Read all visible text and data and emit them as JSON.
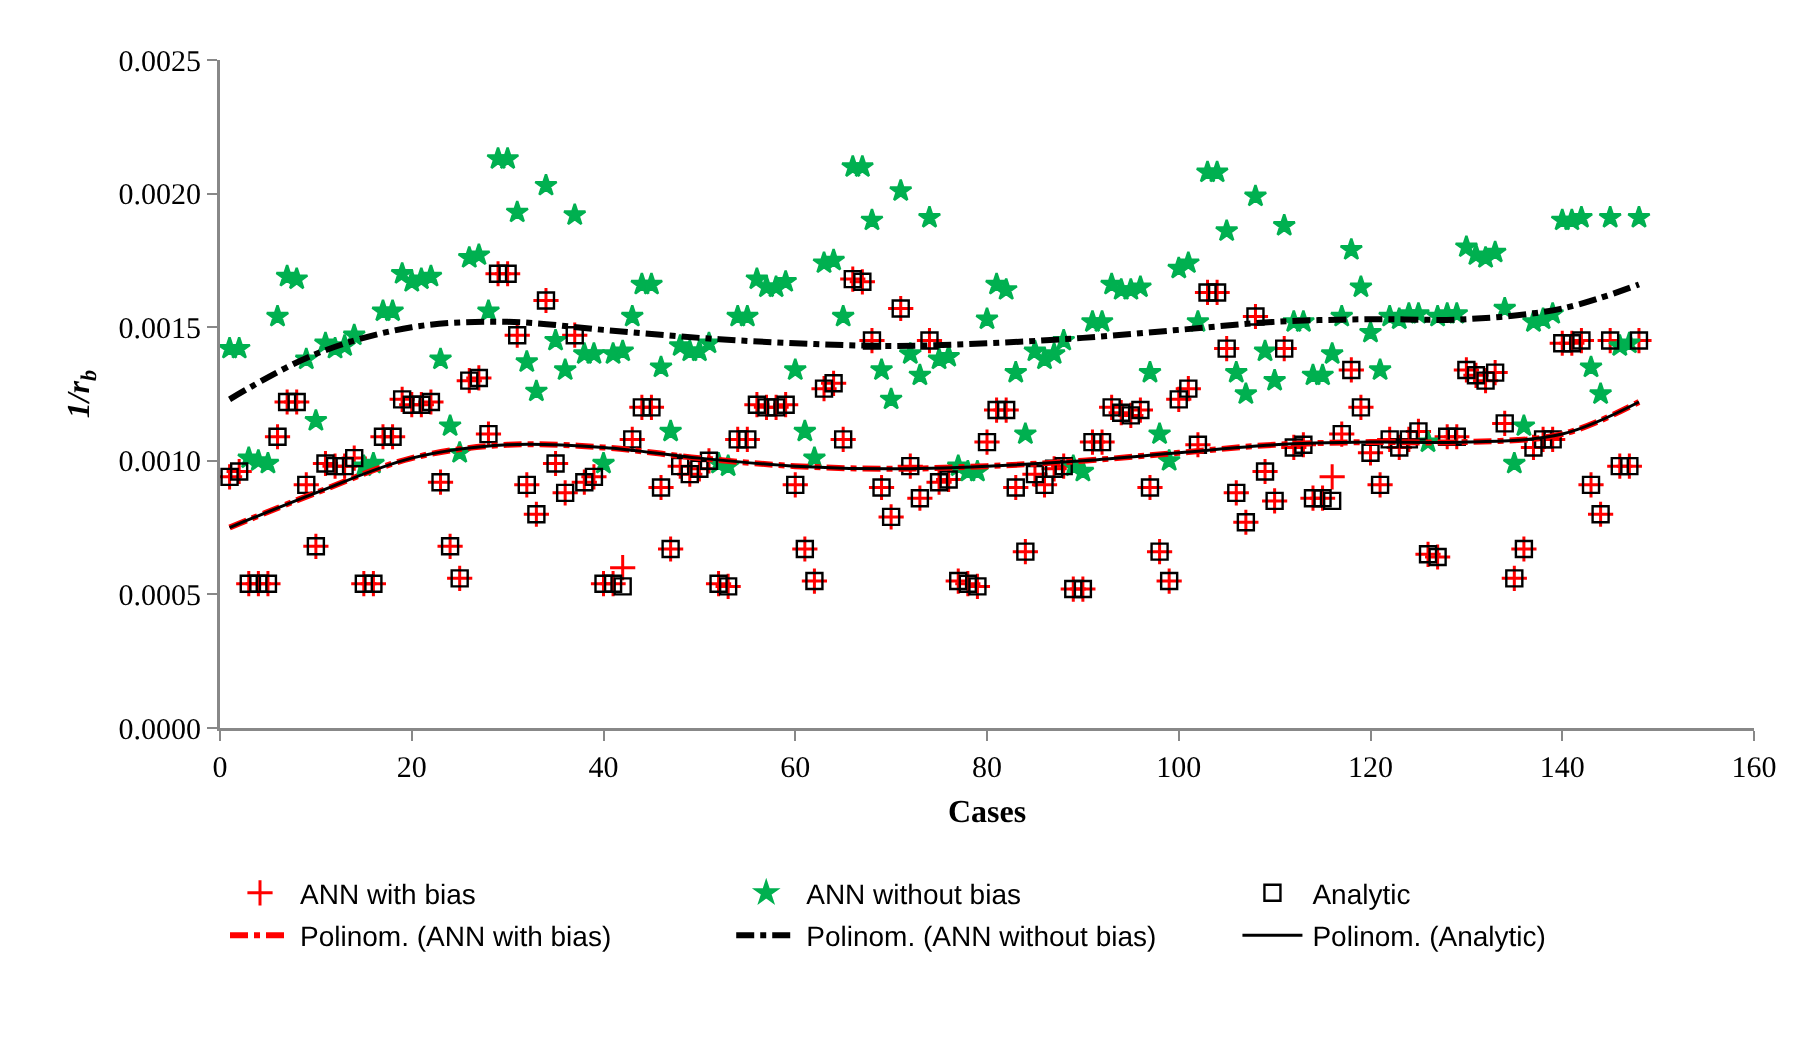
{
  "chart_data": {
    "type": "scatter",
    "xlabel": "Cases",
    "ylabel": "1/r$_{b}$",
    "x": [
      1,
      2,
      3,
      4,
      5,
      6,
      7,
      8,
      9,
      10,
      11,
      12,
      13,
      14,
      15,
      16,
      17,
      18,
      19,
      20,
      21,
      22,
      23,
      24,
      25,
      26,
      27,
      28,
      29,
      30,
      31,
      32,
      33,
      34,
      35,
      36,
      37,
      38,
      39,
      40,
      41,
      42,
      43,
      44,
      45,
      46,
      47,
      48,
      49,
      50,
      51,
      52,
      53,
      54,
      55,
      56,
      57,
      58,
      59,
      60,
      61,
      62,
      63,
      64,
      65,
      66,
      67,
      68,
      69,
      70,
      71,
      72,
      73,
      74,
      75,
      76,
      77,
      78,
      79,
      80,
      81,
      82,
      83,
      84,
      85,
      86,
      87,
      88,
      89,
      90,
      91,
      92,
      93,
      94,
      95,
      96,
      97,
      98,
      99,
      100,
      101,
      102,
      103,
      104,
      105,
      106,
      107,
      108,
      109,
      110,
      111,
      112,
      113,
      114,
      115,
      116,
      117,
      118,
      119,
      120,
      121,
      122,
      123,
      124,
      125,
      126,
      127,
      128,
      129,
      130,
      131,
      132,
      133,
      134,
      135,
      136,
      137,
      138,
      139,
      140,
      141,
      142,
      143,
      144,
      145,
      146,
      147,
      148
    ],
    "xlim": [
      0,
      160
    ],
    "xticks": [
      0,
      20,
      40,
      60,
      80,
      100,
      120,
      140,
      160
    ],
    "ylim": [
      0,
      0.0025
    ],
    "yticks": [
      {
        "value": 0,
        "label": "0.0000"
      },
      {
        "value": 0.0005,
        "label": "0.0005"
      },
      {
        "value": 0.001,
        "label": "0.0010"
      },
      {
        "value": 0.0015,
        "label": "0.0015"
      },
      {
        "value": 0.002,
        "label": "0.0020"
      },
      {
        "value": 0.0025,
        "label": "0.0025"
      }
    ],
    "grid": false,
    "legend": "bottom",
    "series": [
      {
        "name": "ANN with bias",
        "color": "#ff0000",
        "marker": "cross",
        "values": [
          0.00094,
          0.00096,
          0.00054,
          0.00054,
          0.00054,
          0.00109,
          0.00122,
          0.00122,
          0.00091,
          0.00068,
          0.00099,
          0.00098,
          0.00098,
          0.00101,
          0.00054,
          0.00054,
          0.00109,
          0.00109,
          0.00123,
          0.00121,
          0.00121,
          0.00122,
          0.00092,
          0.00068,
          0.00056,
          0.0013,
          0.00131,
          0.0011,
          0.0017,
          0.0017,
          0.00147,
          0.00091,
          0.0008,
          0.0016,
          0.00099,
          0.00088,
          0.00147,
          0.00092,
          0.00094,
          0.00054,
          0.00054,
          0.0006,
          0.00108,
          0.0012,
          0.0012,
          0.0009,
          0.00067,
          0.00098,
          0.00095,
          0.00097,
          0.001,
          0.00054,
          0.00053,
          0.00108,
          0.00108,
          0.00121,
          0.0012,
          0.0012,
          0.00121,
          0.00091,
          0.00067,
          0.00055,
          0.00127,
          0.00129,
          0.00108,
          0.00168,
          0.00167,
          0.00145,
          0.0009,
          0.00079,
          0.00157,
          0.00098,
          0.00086,
          0.00145,
          0.00092,
          0.00093,
          0.00055,
          0.00054,
          0.00053,
          0.00107,
          0.00119,
          0.00119,
          0.0009,
          0.00066,
          0.00095,
          0.00091,
          0.00097,
          0.00098,
          0.00052,
          0.00052,
          0.00107,
          0.00107,
          0.0012,
          0.00118,
          0.00117,
          0.00119,
          0.0009,
          0.00066,
          0.00055,
          0.00123,
          0.00127,
          0.00106,
          0.00163,
          0.00163,
          0.00142,
          0.00088,
          0.00077,
          0.00154,
          0.00096,
          0.00085,
          0.00142,
          0.00105,
          0.00106,
          0.00086,
          0.00086,
          0.00094,
          0.0011,
          0.00134,
          0.0012,
          0.00103,
          0.00091,
          0.00108,
          0.00105,
          0.00108,
          0.00111,
          0.00065,
          0.00064,
          0.00109,
          0.00109,
          0.00134,
          0.00132,
          0.0013,
          0.00133,
          0.00114,
          0.00056,
          0.00067,
          0.00105,
          0.00108,
          0.00108,
          0.00144,
          0.00144,
          0.00145,
          0.00091,
          0.0008,
          0.00145,
          0.00098,
          0.00098,
          0.00145
        ]
      },
      {
        "name": "ANN without bias",
        "color": "#00b050",
        "marker": "star",
        "values": [
          0.00142,
          0.00142,
          0.00101,
          0.001,
          0.00099,
          0.00154,
          0.00169,
          0.00168,
          0.00138,
          0.00115,
          0.00144,
          0.00142,
          0.00143,
          0.00147,
          0.00098,
          0.00099,
          0.00156,
          0.00156,
          0.0017,
          0.00167,
          0.00168,
          0.00169,
          0.00138,
          0.00113,
          0.00103,
          0.00176,
          0.00177,
          0.00156,
          0.00213,
          0.00213,
          0.00193,
          0.00137,
          0.00126,
          0.00203,
          0.00145,
          0.00134,
          0.00192,
          0.0014,
          0.0014,
          0.00099,
          0.0014,
          0.00141,
          0.00154,
          0.00166,
          0.00166,
          0.00135,
          0.00111,
          0.00143,
          0.00141,
          0.00141,
          0.00144,
          0.00099,
          0.00098,
          0.00154,
          0.00154,
          0.00168,
          0.00165,
          0.00165,
          0.00167,
          0.00134,
          0.00111,
          0.00101,
          0.00174,
          0.00175,
          0.00154,
          0.0021,
          0.0021,
          0.0019,
          0.00134,
          0.00123,
          0.00201,
          0.0014,
          0.00132,
          0.00191,
          0.00138,
          0.00139,
          0.00098,
          0.00096,
          0.00096,
          0.00153,
          0.00166,
          0.00164,
          0.00133,
          0.0011,
          0.00141,
          0.00138,
          0.0014,
          0.00145,
          0.00098,
          0.00096,
          0.00152,
          0.00152,
          0.00166,
          0.00164,
          0.00164,
          0.00165,
          0.00133,
          0.0011,
          0.001,
          0.00172,
          0.00174,
          0.00152,
          0.00208,
          0.00208,
          0.00186,
          0.00133,
          0.00125,
          0.00199,
          0.00141,
          0.0013,
          0.00188,
          0.00152,
          0.00152,
          0.00132,
          0.00132,
          0.0014,
          0.00154,
          0.00179,
          0.00165,
          0.00148,
          0.00134,
          0.00154,
          0.00153,
          0.00155,
          0.00155,
          0.00107,
          0.00154,
          0.00155,
          0.00155,
          0.0018,
          0.00177,
          0.00176,
          0.00178,
          0.00157,
          0.00099,
          0.00113,
          0.00152,
          0.00153,
          0.00155,
          0.0019,
          0.0019,
          0.00191,
          0.00135,
          0.00125,
          0.00191,
          0.00143,
          0.00144,
          0.00191
        ]
      },
      {
        "name": "Analytic",
        "color": "#000000",
        "marker": "square",
        "values": [
          0.00094,
          0.00096,
          0.00054,
          0.00054,
          0.00054,
          0.00109,
          0.00122,
          0.00122,
          0.00091,
          0.00068,
          0.00099,
          0.00098,
          0.00098,
          0.00101,
          0.00054,
          0.00054,
          0.00109,
          0.00109,
          0.00123,
          0.00121,
          0.00121,
          0.00122,
          0.00092,
          0.00068,
          0.00056,
          0.0013,
          0.00131,
          0.0011,
          0.0017,
          0.0017,
          0.00147,
          0.00091,
          0.0008,
          0.0016,
          0.00099,
          0.00088,
          0.00147,
          0.00092,
          0.00094,
          0.00054,
          0.00054,
          0.00053,
          0.00108,
          0.0012,
          0.0012,
          0.0009,
          0.00067,
          0.00098,
          0.00095,
          0.00097,
          0.001,
          0.00054,
          0.00053,
          0.00108,
          0.00108,
          0.00121,
          0.0012,
          0.0012,
          0.00121,
          0.00091,
          0.00067,
          0.00055,
          0.00127,
          0.00129,
          0.00108,
          0.00168,
          0.00167,
          0.00145,
          0.0009,
          0.00079,
          0.00157,
          0.00098,
          0.00086,
          0.00145,
          0.00092,
          0.00093,
          0.00055,
          0.00054,
          0.00053,
          0.00107,
          0.00119,
          0.00119,
          0.0009,
          0.00066,
          0.00095,
          0.00091,
          0.00097,
          0.00098,
          0.00052,
          0.00052,
          0.00107,
          0.00107,
          0.0012,
          0.00118,
          0.00117,
          0.00119,
          0.0009,
          0.00066,
          0.00055,
          0.00123,
          0.00127,
          0.00106,
          0.00163,
          0.00163,
          0.00142,
          0.00088,
          0.00077,
          0.00154,
          0.00096,
          0.00085,
          0.00142,
          0.00105,
          0.00106,
          0.00086,
          0.00086,
          0.00085,
          0.0011,
          0.00134,
          0.0012,
          0.00103,
          0.00091,
          0.00108,
          0.00105,
          0.00108,
          0.00111,
          0.00065,
          0.00064,
          0.00109,
          0.00109,
          0.00134,
          0.00132,
          0.0013,
          0.00133,
          0.00114,
          0.00056,
          0.00067,
          0.00105,
          0.00108,
          0.00108,
          0.00144,
          0.00144,
          0.00145,
          0.00091,
          0.0008,
          0.00145,
          0.00098,
          0.00098,
          0.00145
        ]
      },
      {
        "name": "Polinom. (ANN with bias)",
        "type": "line",
        "color": "#ff0000",
        "line_style": "dashed",
        "x": [
          1,
          10,
          20,
          30,
          40,
          50,
          60,
          70,
          80,
          90,
          100,
          110,
          120,
          130,
          140,
          148
        ],
        "values": [
          0.00075,
          0.00088,
          0.00101,
          0.00106,
          0.00105,
          0.00101,
          0.00098,
          0.00097,
          0.00098,
          0.001,
          0.00103,
          0.00106,
          0.00107,
          0.00107,
          0.0011,
          0.00122
        ]
      },
      {
        "name": "Polinom. (ANN without bias)",
        "type": "line",
        "color": "#000000",
        "line_style": "dashed",
        "x": [
          1,
          10,
          20,
          30,
          40,
          50,
          60,
          70,
          80,
          90,
          100,
          110,
          120,
          130,
          140,
          148
        ],
        "values": [
          0.00123,
          0.0014,
          0.0015,
          0.00152,
          0.00149,
          0.00146,
          0.00144,
          0.00143,
          0.00144,
          0.00146,
          0.00149,
          0.00152,
          0.00153,
          0.00153,
          0.00157,
          0.00166
        ]
      },
      {
        "name": "Polinom. (Analytic)",
        "type": "line",
        "color": "#000000",
        "line_style": "solid",
        "x": [
          1,
          10,
          20,
          30,
          40,
          50,
          60,
          70,
          80,
          90,
          100,
          110,
          120,
          130,
          140,
          148
        ],
        "values": [
          0.00075,
          0.00088,
          0.00101,
          0.00106,
          0.00105,
          0.00101,
          0.00098,
          0.00097,
          0.00098,
          0.001,
          0.00103,
          0.00106,
          0.00107,
          0.00107,
          0.0011,
          0.00122
        ]
      }
    ]
  }
}
